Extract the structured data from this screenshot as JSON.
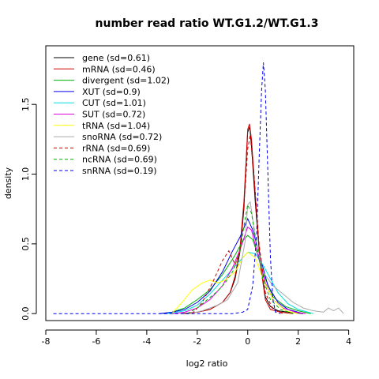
{
  "chart_data": {
    "type": "line",
    "title": "number read ratio WT.G1.2/WT.G1.3",
    "xlabel": "log2 ratio",
    "ylabel": "density",
    "xlim": [
      -8,
      4.2
    ],
    "ylim": [
      -0.05,
      1.92
    ],
    "xticks": [
      -8,
      -6,
      -4,
      -2,
      0,
      2,
      4
    ],
    "yticks": [
      0.0,
      0.5,
      1.0,
      1.5
    ],
    "legend_position": "top-left",
    "series": [
      {
        "name": "gene (sd=0.61)",
        "color": "#000000",
        "dash": "solid",
        "points": [
          [
            -2.6,
            0
          ],
          [
            -2.0,
            0.01
          ],
          [
            -1.5,
            0.03
          ],
          [
            -1.0,
            0.08
          ],
          [
            -0.7,
            0.15
          ],
          [
            -0.5,
            0.25
          ],
          [
            -0.3,
            0.45
          ],
          [
            -0.15,
            0.75
          ],
          [
            0,
            1.3
          ],
          [
            0.08,
            1.34
          ],
          [
            0.15,
            1.2
          ],
          [
            0.3,
            0.8
          ],
          [
            0.5,
            0.35
          ],
          [
            0.7,
            0.12
          ],
          [
            0.9,
            0.05
          ],
          [
            1.2,
            0.02
          ],
          [
            1.6,
            0.01
          ],
          [
            2.2,
            0
          ]
        ]
      },
      {
        "name": "mRNA (sd=0.46)",
        "color": "#cc0000",
        "dash": "solid",
        "points": [
          [
            -2.5,
            0
          ],
          [
            -2.0,
            0.01
          ],
          [
            -1.5,
            0.03
          ],
          [
            -1.0,
            0.08
          ],
          [
            -0.7,
            0.15
          ],
          [
            -0.5,
            0.27
          ],
          [
            -0.3,
            0.48
          ],
          [
            -0.15,
            0.8
          ],
          [
            0,
            1.32
          ],
          [
            0.07,
            1.36
          ],
          [
            0.15,
            1.25
          ],
          [
            0.3,
            0.85
          ],
          [
            0.5,
            0.35
          ],
          [
            0.7,
            0.1
          ],
          [
            0.9,
            0.03
          ],
          [
            1.3,
            0.01
          ],
          [
            1.8,
            0
          ]
        ]
      },
      {
        "name": "divergent (sd=1.02)",
        "color": "#00b000",
        "dash": "solid",
        "points": [
          [
            -3.5,
            0
          ],
          [
            -3.0,
            0.01
          ],
          [
            -2.5,
            0.04
          ],
          [
            -2.0,
            0.1
          ],
          [
            -1.5,
            0.17
          ],
          [
            -1.0,
            0.28
          ],
          [
            -0.5,
            0.42
          ],
          [
            -0.2,
            0.52
          ],
          [
            0,
            0.56
          ],
          [
            0.2,
            0.53
          ],
          [
            0.4,
            0.42
          ],
          [
            0.7,
            0.25
          ],
          [
            1.0,
            0.12
          ],
          [
            1.5,
            0.05
          ],
          [
            2.0,
            0.02
          ],
          [
            2.5,
            0
          ]
        ]
      },
      {
        "name": "XUT (sd=0.9)",
        "color": "#0000ee",
        "dash": "solid",
        "points": [
          [
            -3.5,
            0
          ],
          [
            -3.0,
            0.01
          ],
          [
            -2.5,
            0.03
          ],
          [
            -2.0,
            0.08
          ],
          [
            -1.5,
            0.16
          ],
          [
            -1.0,
            0.3
          ],
          [
            -0.6,
            0.45
          ],
          [
            -0.3,
            0.55
          ],
          [
            0,
            0.68
          ],
          [
            0.2,
            0.6
          ],
          [
            0.5,
            0.4
          ],
          [
            0.8,
            0.2
          ],
          [
            1.2,
            0.08
          ],
          [
            1.6,
            0.03
          ],
          [
            2.2,
            0
          ]
        ]
      },
      {
        "name": "CUT (sd=1.01)",
        "color": "#00dddd",
        "dash": "solid",
        "points": [
          [
            -3.2,
            0
          ],
          [
            -2.5,
            0.02
          ],
          [
            -2.0,
            0.06
          ],
          [
            -1.5,
            0.14
          ],
          [
            -1.0,
            0.24
          ],
          [
            -0.5,
            0.34
          ],
          [
            -0.2,
            0.4
          ],
          [
            0,
            0.44
          ],
          [
            0.3,
            0.43
          ],
          [
            0.6,
            0.35
          ],
          [
            0.9,
            0.25
          ],
          [
            1.2,
            0.15
          ],
          [
            1.6,
            0.07
          ],
          [
            2.0,
            0.03
          ],
          [
            2.6,
            0
          ]
        ]
      },
      {
        "name": "SUT (sd=0.72)",
        "color": "#dd00dd",
        "dash": "solid",
        "points": [
          [
            -3.0,
            0
          ],
          [
            -2.5,
            0.01
          ],
          [
            -2.0,
            0.04
          ],
          [
            -1.5,
            0.1
          ],
          [
            -1.0,
            0.2
          ],
          [
            -0.6,
            0.33
          ],
          [
            -0.3,
            0.46
          ],
          [
            0,
            0.62
          ],
          [
            0.15,
            0.6
          ],
          [
            0.4,
            0.42
          ],
          [
            0.7,
            0.22
          ],
          [
            1.0,
            0.1
          ],
          [
            1.4,
            0.04
          ],
          [
            1.9,
            0.01
          ],
          [
            2.3,
            0
          ]
        ]
      },
      {
        "name": "tRNA (sd=1.04)",
        "color": "#ffff00",
        "dash": "solid",
        "points": [
          [
            -3.0,
            0
          ],
          [
            -2.6,
            0.08
          ],
          [
            -2.2,
            0.17
          ],
          [
            -1.8,
            0.22
          ],
          [
            -1.5,
            0.24
          ],
          [
            -1.2,
            0.22
          ],
          [
            -0.9,
            0.24
          ],
          [
            -0.5,
            0.3
          ],
          [
            -0.2,
            0.4
          ],
          [
            0,
            0.44
          ],
          [
            0.3,
            0.4
          ],
          [
            0.6,
            0.25
          ],
          [
            1.0,
            0.1
          ],
          [
            1.5,
            0.02
          ],
          [
            2.0,
            0
          ]
        ]
      },
      {
        "name": "snoRNA (sd=0.72)",
        "color": "#aaaaaa",
        "dash": "solid",
        "points": [
          [
            -2.3,
            0
          ],
          [
            -1.8,
            0.02
          ],
          [
            -1.2,
            0.06
          ],
          [
            -0.8,
            0.1
          ],
          [
            -0.4,
            0.22
          ],
          [
            -0.1,
            0.52
          ],
          [
            0,
            0.78
          ],
          [
            0.1,
            0.8
          ],
          [
            0.3,
            0.55
          ],
          [
            0.6,
            0.3
          ],
          [
            1.0,
            0.2
          ],
          [
            1.4,
            0.14
          ],
          [
            1.8,
            0.08
          ],
          [
            2.2,
            0.04
          ],
          [
            2.6,
            0.02
          ],
          [
            3.0,
            0.01
          ],
          [
            3.2,
            0.04
          ],
          [
            3.4,
            0.02
          ],
          [
            3.6,
            0.04
          ],
          [
            3.8,
            0
          ]
        ]
      },
      {
        "name": "rRNA (sd=0.69)",
        "color": "#cc0000",
        "dash": "dashed",
        "points": [
          [
            -2.2,
            0
          ],
          [
            -1.8,
            0.08
          ],
          [
            -1.4,
            0.22
          ],
          [
            -1.0,
            0.38
          ],
          [
            -0.75,
            0.45
          ],
          [
            -0.5,
            0.35
          ],
          [
            -0.3,
            0.45
          ],
          [
            -0.1,
            0.9
          ],
          [
            0,
            1.18
          ],
          [
            0.1,
            1.28
          ],
          [
            0.25,
            1.0
          ],
          [
            0.45,
            0.5
          ],
          [
            0.7,
            0.15
          ],
          [
            1.0,
            0.03
          ],
          [
            1.4,
            0
          ]
        ]
      },
      {
        "name": "ncRNA (sd=0.69)",
        "color": "#00b000",
        "dash": "dashed",
        "points": [
          [
            -2.4,
            0
          ],
          [
            -2.0,
            0.04
          ],
          [
            -1.6,
            0.1
          ],
          [
            -1.2,
            0.16
          ],
          [
            -0.9,
            0.22
          ],
          [
            -0.6,
            0.3
          ],
          [
            -0.3,
            0.45
          ],
          [
            -0.1,
            0.68
          ],
          [
            0,
            0.78
          ],
          [
            0.15,
            0.72
          ],
          [
            0.35,
            0.5
          ],
          [
            0.6,
            0.25
          ],
          [
            0.9,
            0.1
          ],
          [
            1.3,
            0.03
          ],
          [
            1.8,
            0
          ]
        ]
      },
      {
        "name": "snRNA (sd=0.19)",
        "color": "#0000ee",
        "dash": "dashed",
        "points": [
          [
            -7.7,
            0
          ],
          [
            -0.6,
            0
          ],
          [
            -0.2,
            0.01
          ],
          [
            0.0,
            0.03
          ],
          [
            0.2,
            0.2
          ],
          [
            0.35,
            0.55
          ],
          [
            0.45,
            1.1
          ],
          [
            0.55,
            1.6
          ],
          [
            0.62,
            1.8
          ],
          [
            0.7,
            1.6
          ],
          [
            0.8,
            1.0
          ],
          [
            0.9,
            0.4
          ],
          [
            1.0,
            0.1
          ],
          [
            1.1,
            0.01
          ],
          [
            1.3,
            0
          ]
        ]
      }
    ]
  }
}
